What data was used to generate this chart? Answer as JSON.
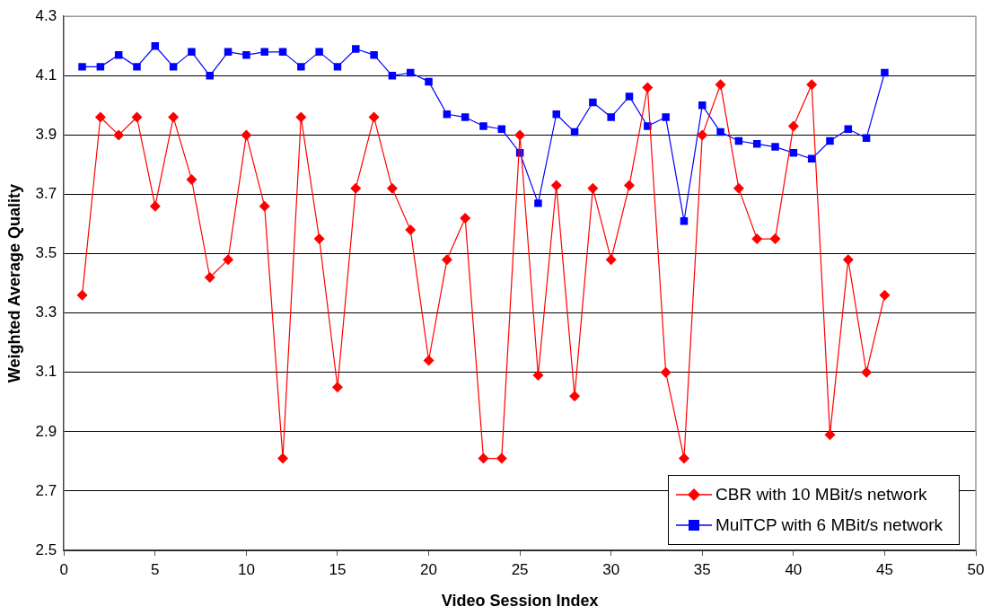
{
  "chart_data": {
    "type": "line",
    "xlabel": "Video Session Index",
    "ylabel": "Weighted Average Quality",
    "x": [
      1,
      2,
      3,
      4,
      5,
      6,
      7,
      8,
      9,
      10,
      11,
      12,
      13,
      14,
      15,
      16,
      17,
      18,
      19,
      20,
      21,
      22,
      23,
      24,
      25,
      26,
      27,
      28,
      29,
      30,
      31,
      32,
      33,
      34,
      35,
      36,
      37,
      38,
      39,
      40,
      41,
      42,
      43,
      44,
      45
    ],
    "series": [
      {
        "name": "CBR with 10 MBit/s network",
        "color": "#ff0000",
        "marker": "diamond",
        "values": [
          3.36,
          3.96,
          3.9,
          3.96,
          3.66,
          3.96,
          3.75,
          3.42,
          3.48,
          3.9,
          3.66,
          2.81,
          3.96,
          3.55,
          3.05,
          3.72,
          3.96,
          3.72,
          3.58,
          3.14,
          3.48,
          3.62,
          2.81,
          2.81,
          3.9,
          3.09,
          3.73,
          3.02,
          3.72,
          3.48,
          3.73,
          4.06,
          3.1,
          2.81,
          3.9,
          4.07,
          3.72,
          3.55,
          3.55,
          3.93,
          4.07,
          2.89,
          3.48,
          3.1,
          3.36
        ]
      },
      {
        "name": "MulTCP with 6 MBit/s network",
        "color": "#0000ff",
        "marker": "square",
        "values": [
          4.13,
          4.13,
          4.17,
          4.13,
          4.2,
          4.13,
          4.18,
          4.1,
          4.18,
          4.17,
          4.18,
          4.18,
          4.13,
          4.18,
          4.13,
          4.19,
          4.17,
          4.1,
          4.11,
          4.08,
          3.97,
          3.96,
          3.93,
          3.92,
          3.84,
          3.67,
          3.97,
          3.91,
          4.01,
          3.96,
          4.03,
          3.93,
          3.96,
          3.61,
          4.0,
          3.91,
          3.88,
          3.87,
          3.86,
          3.84,
          3.82,
          3.88,
          3.92,
          3.89,
          4.11
        ]
      }
    ],
    "xlim": [
      0,
      50
    ],
    "xticks": [
      0,
      5,
      10,
      15,
      20,
      25,
      30,
      35,
      40,
      45,
      50
    ],
    "ylim": [
      2.5,
      4.3
    ],
    "yticks": [
      2.5,
      2.7,
      2.9,
      3.1,
      3.3,
      3.5,
      3.7,
      3.9,
      4.1,
      4.3
    ],
    "grid": "y",
    "legend": "bottom right",
    "line_style": "solid"
  }
}
